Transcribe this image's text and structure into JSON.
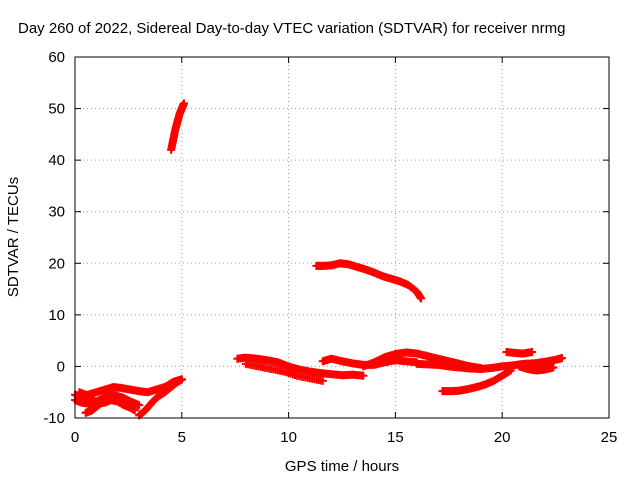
{
  "chart_data": {
    "type": "scatter",
    "title": "Day 260 of 2022, Sidereal Day-to-day VTEC variation (SDTVAR) for receiver nrmg",
    "xlabel": "GPS time / hours",
    "ylabel": "SDTVAR / TECUs",
    "xlim": [
      0,
      25
    ],
    "ylim": [
      -10,
      60
    ],
    "xticks": [
      0,
      5,
      10,
      15,
      20,
      25
    ],
    "yticks": [
      -10,
      0,
      10,
      20,
      30,
      40,
      50,
      60
    ],
    "grid": true,
    "marker": "+",
    "color": "#ff0000",
    "tracks": [
      {
        "x": [
          0.0,
          0.3,
          0.6,
          1.0,
          1.4,
          1.8,
          2.2,
          2.6,
          3.0,
          3.4,
          3.8,
          4.2,
          4.6,
          5.0
        ],
        "y": [
          -5.5,
          -6.0,
          -5.5,
          -5.0,
          -4.5,
          -4.0,
          -4.2,
          -4.5,
          -4.8,
          -5.0,
          -4.5,
          -4.0,
          -3.0,
          -2.5
        ]
      },
      {
        "x": [
          0.0,
          0.3,
          0.6,
          1.0,
          1.4,
          1.8,
          2.2,
          2.6,
          3.0
        ],
        "y": [
          -6.5,
          -7.0,
          -7.2,
          -6.8,
          -6.0,
          -5.5,
          -6.0,
          -6.8,
          -7.5
        ]
      },
      {
        "x": [
          0.2,
          0.5,
          0.8,
          1.1,
          1.4,
          1.7,
          2.0,
          2.3,
          2.6,
          2.8
        ],
        "y": [
          -5.0,
          -5.5,
          -6.5,
          -7.2,
          -7.0,
          -6.5,
          -6.8,
          -7.5,
          -8.0,
          -8.5
        ]
      },
      {
        "x": [
          0.5,
          0.8,
          1.1,
          1.4,
          1.7
        ],
        "y": [
          -9.0,
          -8.5,
          -7.5,
          -6.5,
          -5.8
        ]
      },
      {
        "x": [
          3.0,
          3.3,
          3.6,
          3.9,
          4.2,
          4.5,
          4.8,
          5.0
        ],
        "y": [
          -9.5,
          -8.5,
          -7.0,
          -5.8,
          -5.0,
          -4.0,
          -3.0,
          -2.5
        ]
      },
      {
        "x": [
          4.5,
          4.6,
          4.7,
          4.8,
          4.9,
          5.0,
          5.1
        ],
        "y": [
          42.0,
          44.0,
          46.0,
          47.5,
          49.0,
          50.0,
          51.0
        ]
      },
      {
        "x": [
          7.6,
          8.0,
          8.5,
          9.0,
          9.5,
          10.0,
          10.5,
          11.0,
          11.5,
          12.0,
          12.5,
          13.0,
          13.5
        ],
        "y": [
          1.5,
          1.7,
          1.5,
          1.2,
          0.8,
          0.0,
          -0.6,
          -1.0,
          -1.3,
          -1.5,
          -1.7,
          -1.6,
          -1.8
        ]
      },
      {
        "x": [
          8.0,
          8.6,
          9.2,
          9.8,
          10.4,
          11.0,
          11.6
        ],
        "y": [
          0.5,
          0.0,
          -0.5,
          -1.0,
          -1.8,
          -2.3,
          -2.8
        ]
      },
      {
        "x": [
          11.6,
          12.0,
          12.5,
          13.0,
          13.5,
          14.0,
          14.5,
          15.0,
          15.5,
          16.0
        ],
        "y": [
          1.0,
          1.5,
          1.0,
          0.6,
          0.3,
          0.3,
          0.8,
          1.2,
          1.0,
          0.8
        ]
      },
      {
        "x": [
          13.5,
          14.0,
          14.5,
          15.0,
          15.5,
          16.0,
          16.5,
          17.0,
          17.5,
          18.0,
          18.5,
          19.0
        ],
        "y": [
          0.0,
          0.8,
          1.8,
          2.4,
          2.7,
          2.5,
          2.0,
          1.5,
          1.0,
          0.5,
          0.0,
          -0.3
        ]
      },
      {
        "x": [
          16.0,
          16.5,
          17.0,
          17.5,
          18.0,
          18.5,
          19.0,
          19.5,
          20.0,
          20.5,
          21.0,
          21.5,
          22.0,
          22.5,
          22.8
        ],
        "y": [
          0.5,
          0.4,
          0.3,
          0.0,
          -0.2,
          -0.4,
          -0.5,
          -0.3,
          0.0,
          0.2,
          0.5,
          0.6,
          0.9,
          1.3,
          1.6
        ]
      },
      {
        "x": [
          17.2,
          17.6,
          18.0,
          18.4,
          18.8,
          19.2,
          19.6,
          20.0,
          20.4
        ],
        "y": [
          -4.8,
          -4.8,
          -4.7,
          -4.4,
          -4.0,
          -3.5,
          -2.8,
          -1.8,
          -0.8
        ]
      },
      {
        "x": [
          20.2,
          20.6,
          21.0,
          21.4
        ],
        "y": [
          2.8,
          2.6,
          2.5,
          2.8
        ]
      },
      {
        "x": [
          20.8,
          21.2,
          21.6,
          22.0,
          22.4
        ],
        "y": [
          0.0,
          -0.5,
          -0.8,
          -0.6,
          -0.2
        ]
      },
      {
        "x": [
          11.3,
          11.6,
          12.0,
          12.4,
          12.8,
          13.2,
          13.6,
          14.0,
          14.4,
          14.8,
          15.2,
          15.6,
          16.0,
          16.2
        ],
        "y": [
          19.5,
          19.5,
          19.6,
          20.0,
          19.8,
          19.3,
          18.8,
          18.2,
          17.5,
          17.0,
          16.5,
          15.8,
          14.5,
          13.2
        ]
      }
    ]
  }
}
